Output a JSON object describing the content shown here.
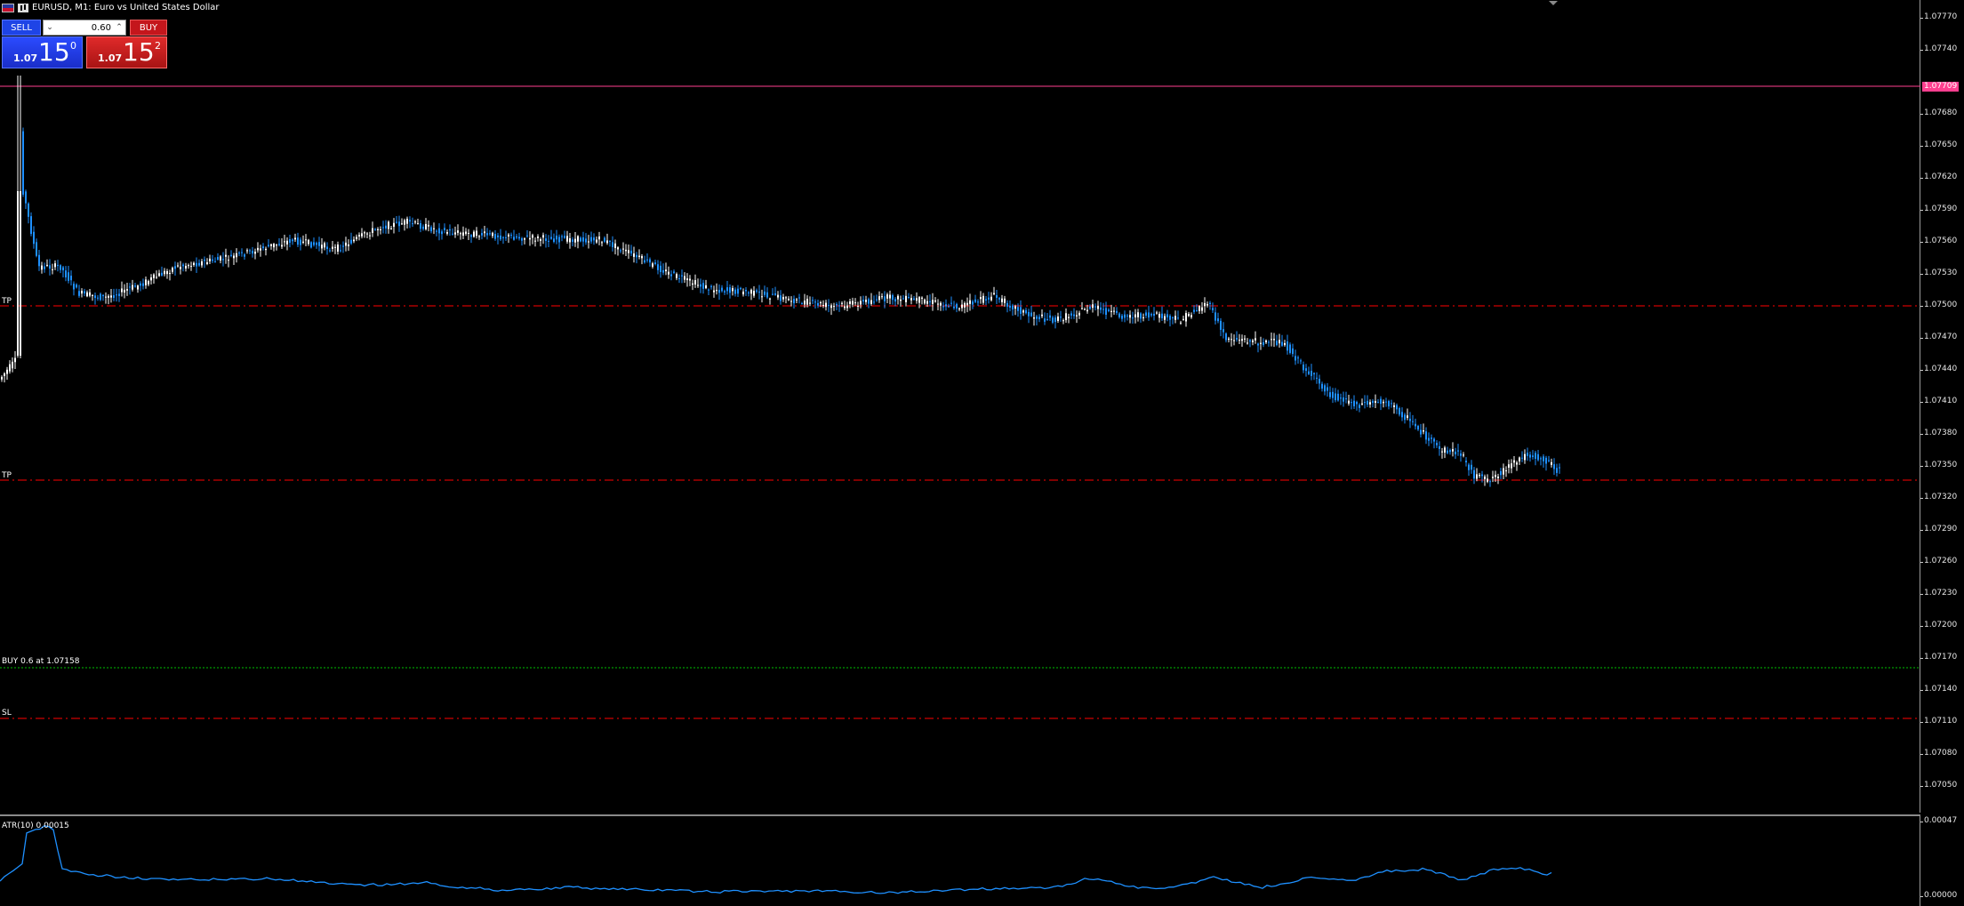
{
  "header": {
    "symbol_title": "EURUSD, M1:  Euro vs United States Dollar",
    "icons": [
      "flag-eu-us-icon",
      "chart-type-icon"
    ]
  },
  "trade_panel": {
    "sell_label": "SELL",
    "buy_label": "BUY",
    "lot_value": "0.60",
    "lot_down_icon": "chevron-down-icon",
    "lot_up_icon": "chevron-up-icon",
    "sell_price": {
      "prefix": "1.07",
      "big": "15",
      "sup": "0"
    },
    "buy_price": {
      "prefix": "1.07",
      "big": "15",
      "sup": "2"
    }
  },
  "price_axis": {
    "labels": [
      "1.07770",
      "1.07740",
      "1.07680",
      "1.07650",
      "1.07620",
      "1.07590",
      "1.07560",
      "1.07530",
      "1.07500",
      "1.07470",
      "1.07440",
      "1.07410",
      "1.07380",
      "1.07350",
      "1.07320",
      "1.07290",
      "1.07260",
      "1.07230",
      "1.07200",
      "1.07170",
      "1.07140",
      "1.07110",
      "1.07080",
      "1.07050"
    ],
    "current_tag": "1.07709"
  },
  "chart_lines": {
    "tp1_label": "TP",
    "tp2_label": "TP",
    "buy_label": "BUY 0.6 at 1.07158",
    "sl_label": "SL"
  },
  "indicator": {
    "label": "ATR(10) 0.00015",
    "axis_top": "0.00047",
    "axis_bottom": "0.00000"
  },
  "colors": {
    "background": "#000000",
    "bull_candle": "#ffffff",
    "bear_candle": "#1e90ff",
    "tp_sl_line": "#ff0000",
    "buy_line": "#00c000",
    "price_line": "#ff3f8f",
    "atr_line": "#1e90ff"
  }
}
